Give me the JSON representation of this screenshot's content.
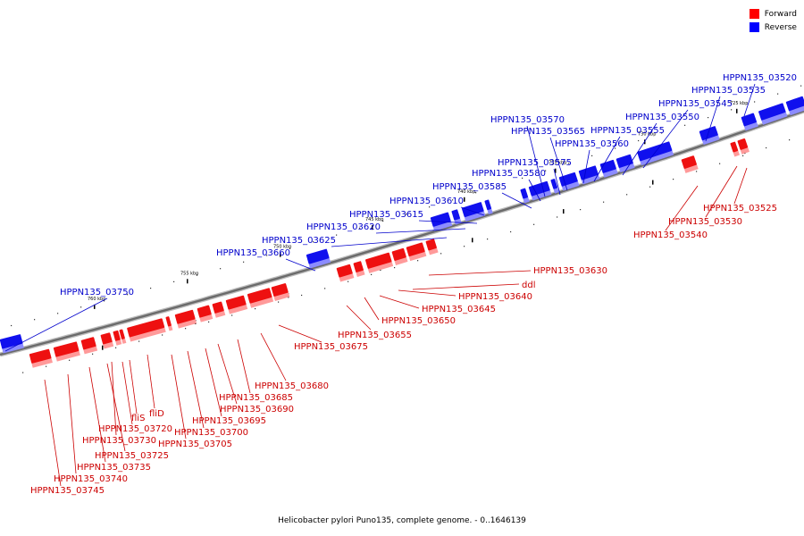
{
  "legend": {
    "forward": {
      "label": "Forward",
      "color": "#ff0000"
    },
    "reverse": {
      "label": "Reverse",
      "color": "#0000ff"
    }
  },
  "caption": "Helicobacter pylori Puno135, complete genome. - 0..1646139",
  "ticks": [
    "725 kbp",
    "730 kbp",
    "735 kbp",
    "740 kbp",
    "745 kbp",
    "750 kbp",
    "755 kbp",
    "760 kbp"
  ],
  "labels": {
    "reverse": [
      "HPPN135_03520",
      "HPPN135_03535",
      "HPPN135_03545",
      "HPPN135_03550",
      "HPPN135_03555",
      "HPPN135_03560",
      "HPPN135_03565",
      "HPPN135_03570",
      "HPPN135_03575",
      "HPPN135_03580",
      "HPPN135_03585",
      "HPPN135_03610",
      "HPPN135_03615",
      "HPPN135_03620",
      "HPPN135_03625",
      "HPPN135_03660",
      "HPPN135_03750"
    ],
    "forward": [
      "HPPN135_03525",
      "HPPN135_03530",
      "HPPN135_03540",
      "HPPN135_03630",
      "ddl",
      "HPPN135_03640",
      "HPPN135_03645",
      "HPPN135_03650",
      "HPPN135_03655",
      "HPPN135_03675",
      "HPPN135_03680",
      "HPPN135_03685",
      "HPPN135_03690",
      "HPPN135_03695",
      "HPPN135_03700",
      "HPPN135_03705",
      "fliD",
      "fliS",
      "HPPN135_03720",
      "HPPN135_03730",
      "HPPN135_03725",
      "HPPN135_03735",
      "HPPN135_03740",
      "HPPN135_03745"
    ]
  }
}
